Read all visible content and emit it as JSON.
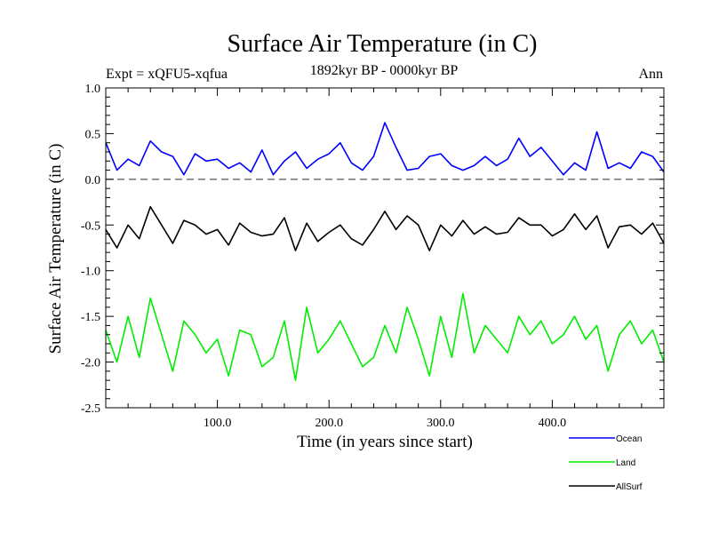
{
  "chart_data": {
    "type": "line",
    "title": "Surface Air Temperature (in C)",
    "expt_label": "Expt = xQFU5-xqfua",
    "period_label": "1892kyr BP - 0000kyr BP",
    "season_label": "Ann",
    "xlabel": "Time (in years since start)",
    "ylabel": "Surface Air Temperature (in C)",
    "xlim": [
      0,
      500
    ],
    "ylim": [
      -2.5,
      1.0
    ],
    "x_ticks": [
      100,
      200,
      300,
      400
    ],
    "x_tick_labels": [
      "100.0",
      "200.0",
      "300.0",
      "400.0"
    ],
    "y_ticks": [
      1.0,
      0.5,
      0.0,
      -0.5,
      -1.0,
      -1.5,
      -2.0,
      -2.5
    ],
    "y_tick_labels": [
      "1.0",
      "0.5",
      "0.0",
      "-0.5",
      "-1.0",
      "-1.5",
      "-2.0",
      "-2.5"
    ],
    "reference_line": 0.0,
    "x_step": 10,
    "series": [
      {
        "name": "Ocean",
        "color": "#0000ff",
        "values": [
          0.4,
          0.1,
          0.22,
          0.15,
          0.42,
          0.3,
          0.25,
          0.05,
          0.28,
          0.2,
          0.22,
          0.12,
          0.18,
          0.08,
          0.32,
          0.05,
          0.2,
          0.3,
          0.12,
          0.22,
          0.28,
          0.4,
          0.18,
          0.1,
          0.25,
          0.62,
          0.35,
          0.1,
          0.12,
          0.25,
          0.28,
          0.15,
          0.1,
          0.15,
          0.25,
          0.15,
          0.22,
          0.45,
          0.25,
          0.35,
          0.2,
          0.05,
          0.18,
          0.1,
          0.52,
          0.12,
          0.18,
          0.12,
          0.3,
          0.25,
          0.08
        ]
      },
      {
        "name": "Land",
        "color": "#00ee00",
        "values": [
          -1.65,
          -2.0,
          -1.5,
          -1.95,
          -1.3,
          -1.7,
          -2.1,
          -1.55,
          -1.7,
          -1.9,
          -1.75,
          -2.15,
          -1.65,
          -1.7,
          -2.05,
          -1.95,
          -1.55,
          -2.2,
          -1.4,
          -1.9,
          -1.75,
          -1.55,
          -1.8,
          -2.05,
          -1.95,
          -1.6,
          -1.9,
          -1.4,
          -1.75,
          -2.15,
          -1.5,
          -1.95,
          -1.25,
          -1.9,
          -1.6,
          -1.75,
          -1.9,
          -1.5,
          -1.7,
          -1.55,
          -1.8,
          -1.7,
          -1.5,
          -1.75,
          -1.6,
          -2.1,
          -1.7,
          -1.55,
          -1.8,
          -1.65,
          -2.0
        ]
      },
      {
        "name": "AllSurf",
        "color": "#000000",
        "values": [
          -0.55,
          -0.75,
          -0.5,
          -0.65,
          -0.3,
          -0.5,
          -0.7,
          -0.45,
          -0.5,
          -0.6,
          -0.55,
          -0.72,
          -0.48,
          -0.58,
          -0.62,
          -0.6,
          -0.42,
          -0.78,
          -0.48,
          -0.68,
          -0.58,
          -0.5,
          -0.65,
          -0.72,
          -0.55,
          -0.35,
          -0.55,
          -0.4,
          -0.5,
          -0.78,
          -0.5,
          -0.62,
          -0.45,
          -0.6,
          -0.52,
          -0.6,
          -0.58,
          -0.42,
          -0.5,
          -0.5,
          -0.62,
          -0.55,
          -0.38,
          -0.55,
          -0.4,
          -0.75,
          -0.52,
          -0.5,
          -0.6,
          -0.48,
          -0.7
        ]
      }
    ]
  }
}
